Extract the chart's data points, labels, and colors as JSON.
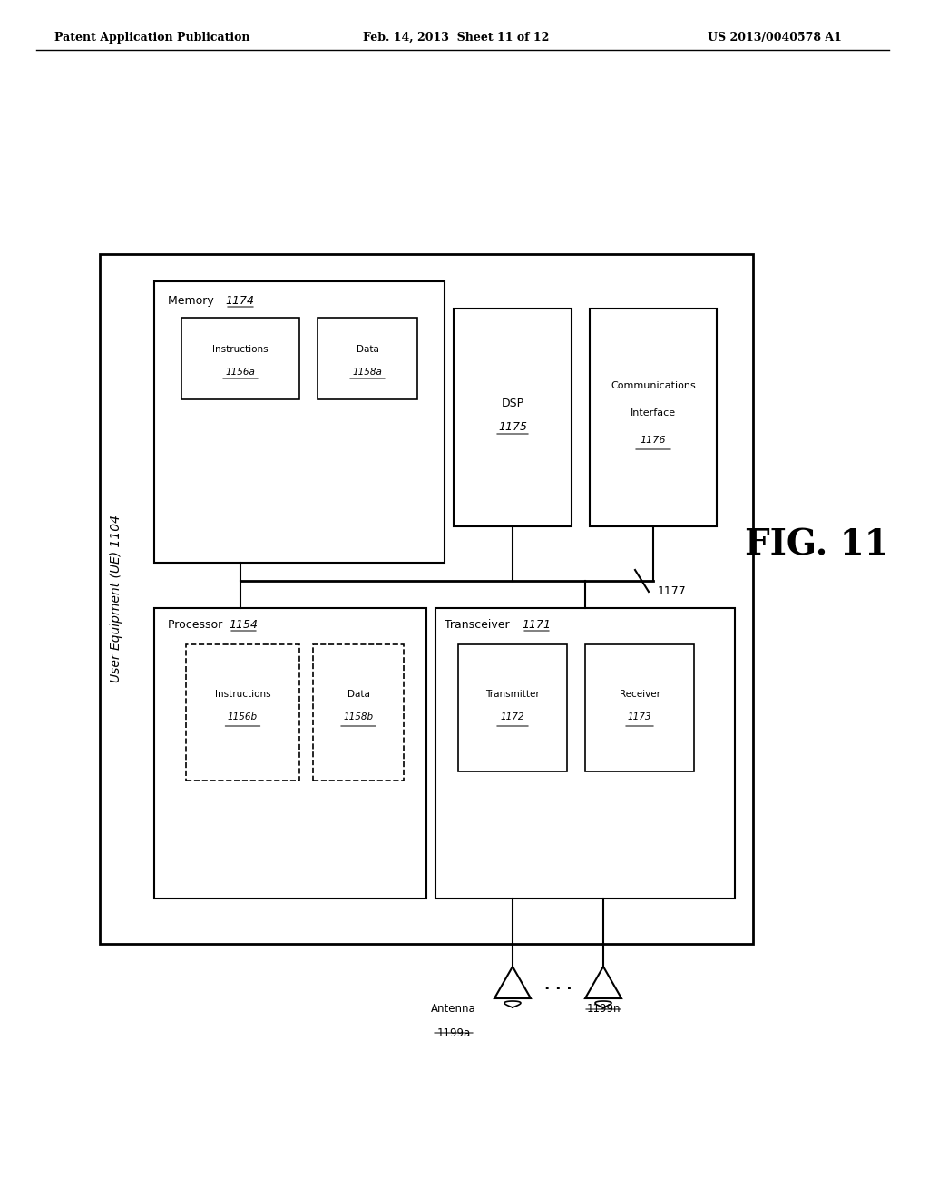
{
  "background_color": "#ffffff",
  "header_left": "Patent Application Publication",
  "header_center": "Feb. 14, 2013  Sheet 11 of 12",
  "header_right": "US 2013/0040578 A1",
  "fig_label": "FIG. 11",
  "outer_box_label": "User Equipment (UE) 1104",
  "bus_label": "1177",
  "antenna_n_label": "1199n"
}
